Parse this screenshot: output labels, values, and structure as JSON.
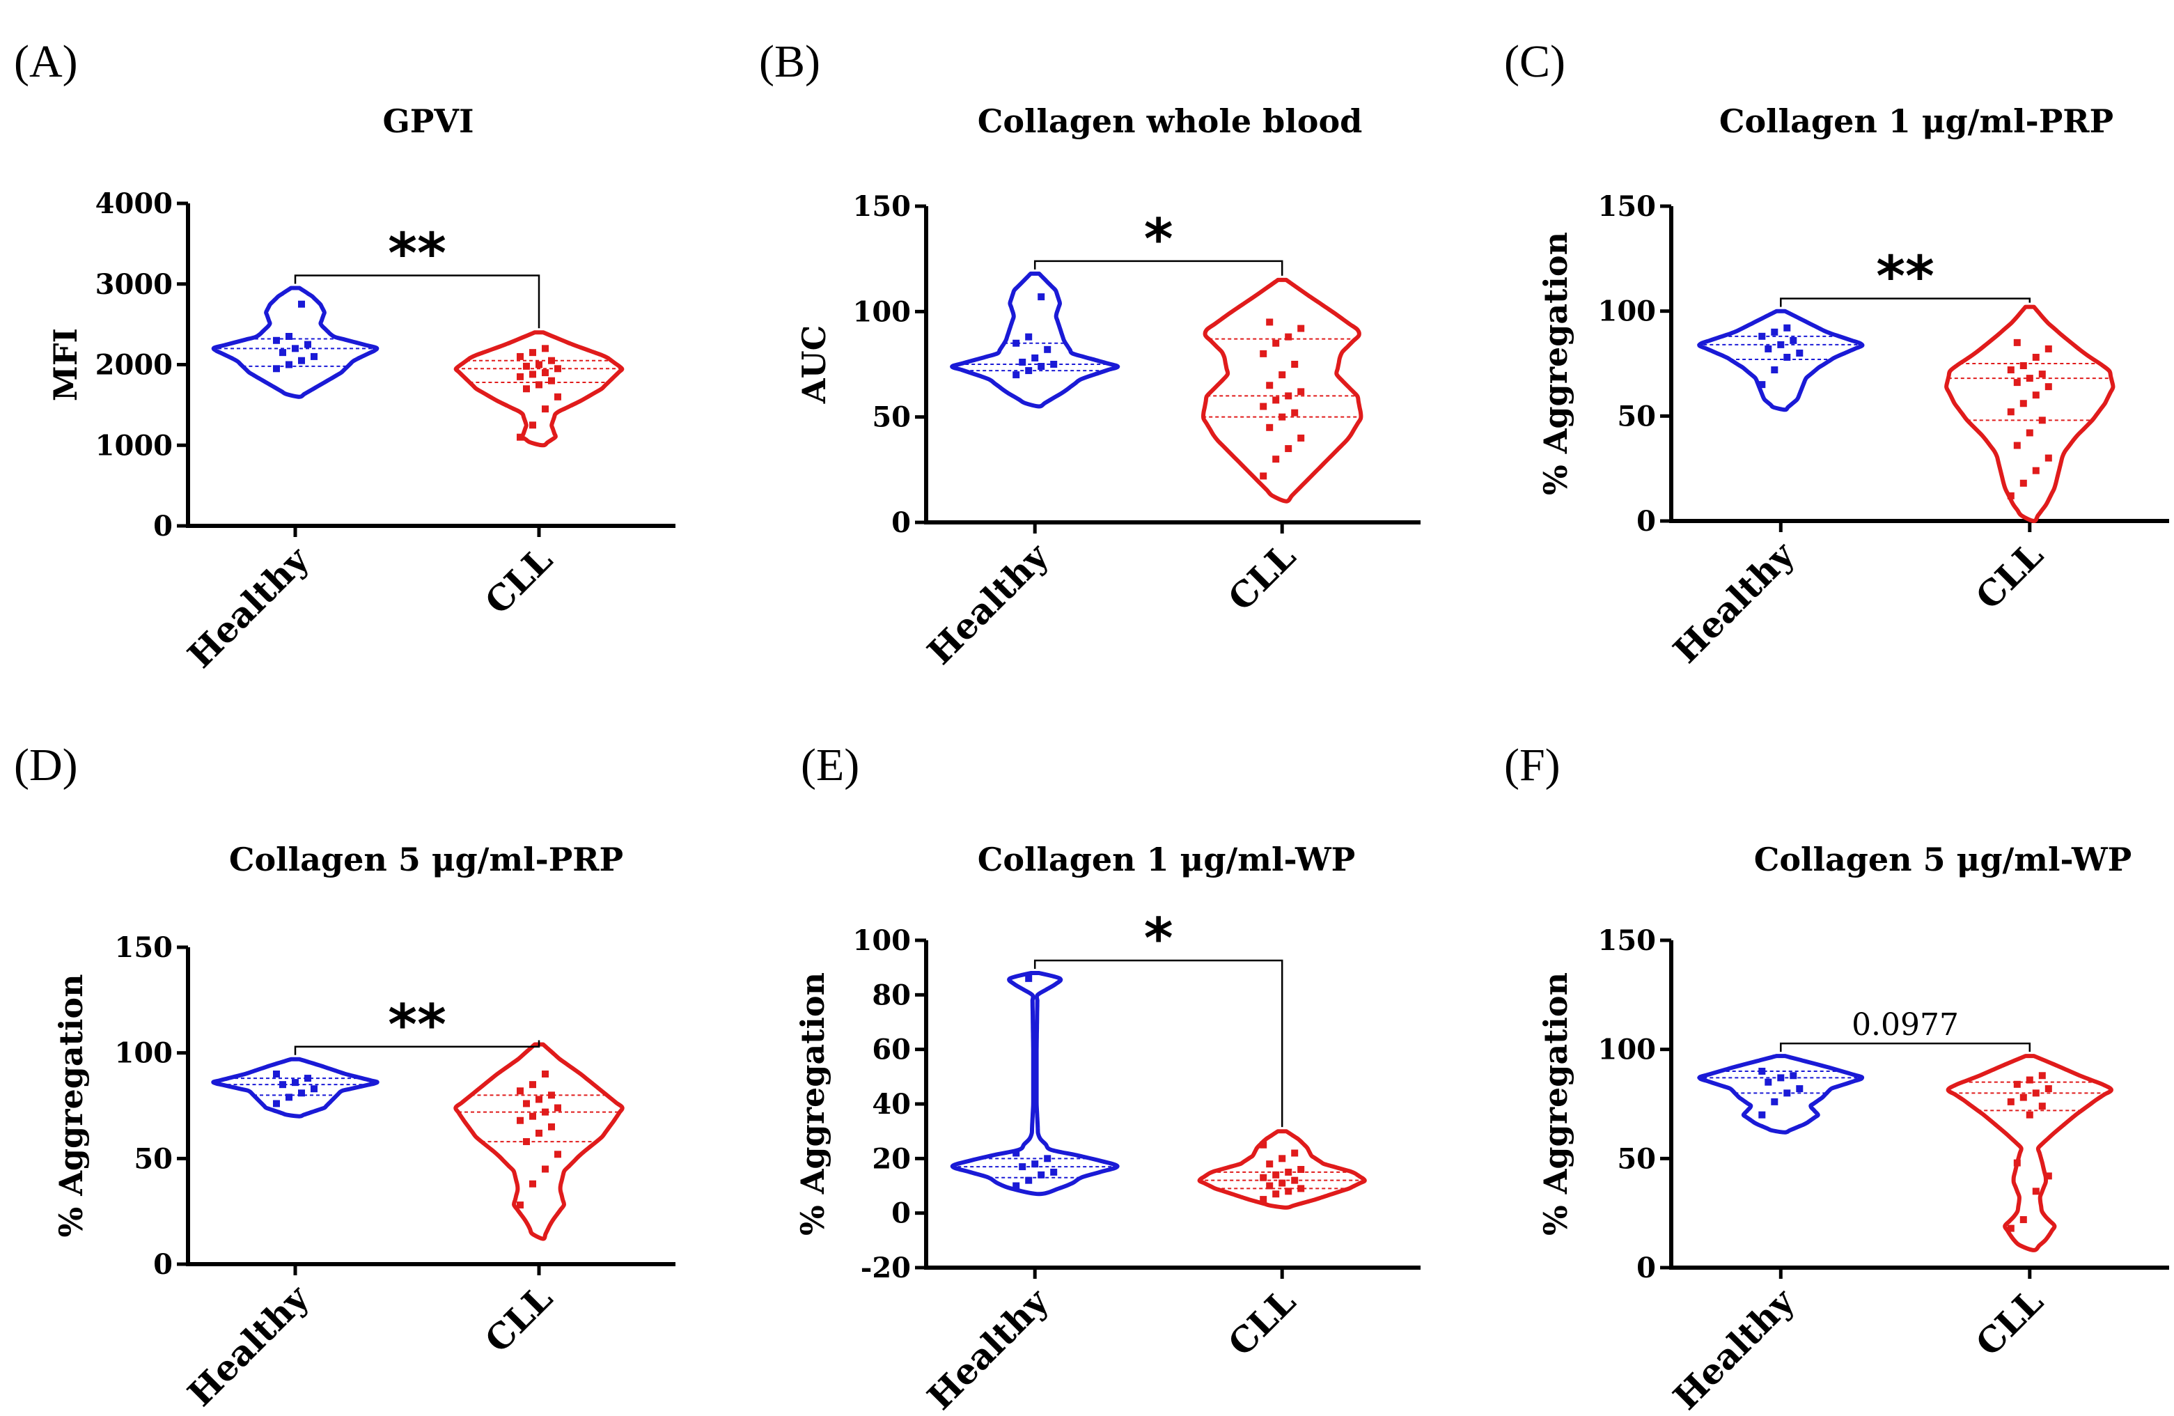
{
  "colors": {
    "healthy": "#1a1ad6",
    "cll": "#e01b1b",
    "axis": "#000000"
  },
  "chart_data": [
    {
      "type": "violin",
      "panel": "(A)",
      "title": "GPVI",
      "ylabel": "MFI",
      "ylim": [
        0,
        4000
      ],
      "yticks": [
        0,
        1000,
        2000,
        3000,
        4000
      ],
      "ytick_labels": [
        "0",
        "1000",
        "2000",
        "3000",
        "4000"
      ],
      "categories": [
        "Healthy",
        "CLL"
      ],
      "significance": "**",
      "series": [
        {
          "name": "Healthy",
          "min": 1600,
          "max": 2950,
          "median": 2200,
          "q1": 1980,
          "q3": 2320,
          "density": [
            [
              1600,
              0.05
            ],
            [
              1750,
              0.3
            ],
            [
              1900,
              0.55
            ],
            [
              2050,
              0.7
            ],
            [
              2200,
              1.0
            ],
            [
              2350,
              0.45
            ],
            [
              2500,
              0.3
            ],
            [
              2650,
              0.35
            ],
            [
              2750,
              0.3
            ],
            [
              2850,
              0.2
            ],
            [
              2950,
              0.05
            ]
          ],
          "points": [
            1950,
            2000,
            2050,
            2100,
            2150,
            2200,
            2250,
            2300,
            2350,
            2750
          ]
        },
        {
          "name": "CLL",
          "min": 1000,
          "max": 2400,
          "median": 1950,
          "q1": 1780,
          "q3": 2050,
          "density": [
            [
              1000,
              0.05
            ],
            [
              1100,
              0.2
            ],
            [
              1250,
              0.15
            ],
            [
              1400,
              0.2
            ],
            [
              1550,
              0.5
            ],
            [
              1700,
              0.75
            ],
            [
              1850,
              0.9
            ],
            [
              1950,
              1.0
            ],
            [
              2100,
              0.8
            ],
            [
              2250,
              0.4
            ],
            [
              2400,
              0.05
            ]
          ],
          "points": [
            1100,
            1250,
            1450,
            1600,
            1700,
            1750,
            1800,
            1850,
            1880,
            1900,
            1950,
            1980,
            2000,
            2050,
            2100,
            2150,
            2200
          ]
        }
      ]
    },
    {
      "type": "violin",
      "panel": "(B)",
      "title": "Collagen whole blood",
      "ylabel": "AUC",
      "ylim": [
        0,
        150
      ],
      "yticks": [
        0,
        50,
        100,
        150
      ],
      "ytick_labels": [
        "0",
        "50",
        "100",
        "150"
      ],
      "categories": [
        "Healthy",
        "CLL"
      ],
      "significance": "*",
      "series": [
        {
          "name": "Healthy",
          "min": 55,
          "max": 118,
          "median": 75,
          "q1": 72,
          "q3": 85,
          "density": [
            [
              55,
              0.05
            ],
            [
              62,
              0.35
            ],
            [
              68,
              0.55
            ],
            [
              74,
              1.0
            ],
            [
              80,
              0.45
            ],
            [
              86,
              0.35
            ],
            [
              92,
              0.3
            ],
            [
              98,
              0.25
            ],
            [
              104,
              0.3
            ],
            [
              110,
              0.25
            ],
            [
              118,
              0.05
            ]
          ],
          "points": [
            70,
            72,
            74,
            75,
            76,
            78,
            82,
            85,
            88,
            107
          ]
        },
        {
          "name": "CLL",
          "min": 10,
          "max": 115,
          "median": 60,
          "q1": 50,
          "q3": 87,
          "density": [
            [
              10,
              0.05
            ],
            [
              20,
              0.3
            ],
            [
              30,
              0.55
            ],
            [
              40,
              0.8
            ],
            [
              50,
              0.95
            ],
            [
              60,
              0.9
            ],
            [
              70,
              0.65
            ],
            [
              80,
              0.7
            ],
            [
              90,
              0.95
            ],
            [
              100,
              0.6
            ],
            [
              108,
              0.3
            ],
            [
              115,
              0.05
            ]
          ],
          "points": [
            22,
            30,
            35,
            40,
            45,
            50,
            52,
            55,
            58,
            60,
            62,
            65,
            70,
            75,
            80,
            85,
            88,
            92,
            95
          ]
        }
      ]
    },
    {
      "type": "violin",
      "panel": "(C)",
      "title": "Collagen 1 μg/ml-PRP",
      "ylabel": "% Aggregation",
      "ylim": [
        0,
        150
      ],
      "yticks": [
        0,
        50,
        100,
        150
      ],
      "ytick_labels": [
        "0",
        "50",
        "100",
        "150"
      ],
      "categories": [
        "Healthy",
        "CLL"
      ],
      "significance": "**",
      "series": [
        {
          "name": "Healthy",
          "min": 53,
          "max": 100,
          "median": 84,
          "q1": 77,
          "q3": 88,
          "density": [
            [
              53,
              0.05
            ],
            [
              58,
              0.2
            ],
            [
              63,
              0.25
            ],
            [
              68,
              0.3
            ],
            [
              73,
              0.45
            ],
            [
              78,
              0.65
            ],
            [
              84,
              1.0
            ],
            [
              90,
              0.55
            ],
            [
              95,
              0.3
            ],
            [
              100,
              0.05
            ]
          ],
          "points": [
            65,
            72,
            78,
            80,
            82,
            84,
            86,
            88,
            90,
            92
          ]
        },
        {
          "name": "CLL",
          "min": 0,
          "max": 102,
          "median": 68,
          "q1": 48,
          "q3": 75,
          "density": [
            [
              0,
              0.05
            ],
            [
              8,
              0.2
            ],
            [
              16,
              0.3
            ],
            [
              24,
              0.35
            ],
            [
              32,
              0.4
            ],
            [
              40,
              0.55
            ],
            [
              48,
              0.75
            ],
            [
              56,
              0.9
            ],
            [
              64,
              1.0
            ],
            [
              72,
              0.95
            ],
            [
              80,
              0.65
            ],
            [
              88,
              0.4
            ],
            [
              95,
              0.2
            ],
            [
              102,
              0.05
            ]
          ],
          "points": [
            12,
            18,
            24,
            30,
            36,
            42,
            48,
            52,
            56,
            60,
            64,
            66,
            68,
            70,
            72,
            74,
            78,
            82,
            85
          ]
        }
      ]
    },
    {
      "type": "violin",
      "panel": "(D)",
      "title": "Collagen 5 μg/ml-PRP",
      "ylabel": "% Aggregation",
      "ylim": [
        0,
        150
      ],
      "yticks": [
        0,
        50,
        100,
        150
      ],
      "ytick_labels": [
        "0",
        "50",
        "100",
        "150"
      ],
      "categories": [
        "Healthy",
        "CLL"
      ],
      "significance": "**",
      "series": [
        {
          "name": "Healthy",
          "min": 70,
          "max": 97,
          "median": 85,
          "q1": 80,
          "q3": 88,
          "density": [
            [
              70,
              0.05
            ],
            [
              74,
              0.35
            ],
            [
              78,
              0.45
            ],
            [
              82,
              0.55
            ],
            [
              86,
              1.0
            ],
            [
              90,
              0.6
            ],
            [
              94,
              0.3
            ],
            [
              97,
              0.05
            ]
          ],
          "points": [
            76,
            79,
            81,
            83,
            85,
            86,
            88,
            90
          ]
        },
        {
          "name": "CLL",
          "min": 12,
          "max": 104,
          "median": 72,
          "q1": 58,
          "q3": 80,
          "density": [
            [
              12,
              0.05
            ],
            [
              20,
              0.15
            ],
            [
              28,
              0.3
            ],
            [
              36,
              0.25
            ],
            [
              44,
              0.3
            ],
            [
              52,
              0.5
            ],
            [
              60,
              0.75
            ],
            [
              68,
              0.9
            ],
            [
              74,
              1.0
            ],
            [
              82,
              0.75
            ],
            [
              90,
              0.5
            ],
            [
              97,
              0.25
            ],
            [
              104,
              0.05
            ]
          ],
          "points": [
            28,
            38,
            45,
            52,
            58,
            62,
            65,
            68,
            70,
            72,
            74,
            76,
            78,
            80,
            82,
            85,
            90
          ]
        }
      ]
    },
    {
      "type": "violin",
      "panel": "(E)",
      "title": "Collagen 1 μg/ml-WP",
      "ylabel": "% Aggregation",
      "ylim": [
        -20,
        100
      ],
      "yticks": [
        -20,
        0,
        20,
        40,
        60,
        80,
        100
      ],
      "ytick_labels": [
        "-20",
        "0",
        "20",
        "40",
        "60",
        "80",
        "100"
      ],
      "categories": [
        "Healthy",
        "CLL"
      ],
      "significance": "*",
      "series": [
        {
          "name": "Healthy",
          "min": 7,
          "max": 88,
          "median": 17,
          "q1": 13,
          "q3": 20,
          "density": [
            [
              7,
              0.05
            ],
            [
              10,
              0.4
            ],
            [
              13,
              0.55
            ],
            [
              17,
              1.0
            ],
            [
              20,
              0.7
            ],
            [
              23,
              0.2
            ],
            [
              28,
              0.04
            ],
            [
              40,
              0.02
            ],
            [
              60,
              0.02
            ],
            [
              80,
              0.03
            ],
            [
              84,
              0.25
            ],
            [
              86,
              0.3
            ],
            [
              88,
              0.05
            ]
          ],
          "points": [
            10,
            12,
            14,
            15,
            17,
            18,
            20,
            22,
            86
          ]
        },
        {
          "name": "CLL",
          "min": 2,
          "max": 30,
          "median": 12,
          "q1": 9,
          "q3": 15,
          "density": [
            [
              2,
              0.05
            ],
            [
              5,
              0.4
            ],
            [
              9,
              0.8
            ],
            [
              12,
              1.0
            ],
            [
              15,
              0.85
            ],
            [
              18,
              0.5
            ],
            [
              21,
              0.35
            ],
            [
              24,
              0.3
            ],
            [
              27,
              0.2
            ],
            [
              30,
              0.05
            ]
          ],
          "points": [
            5,
            7,
            8,
            9,
            10,
            11,
            12,
            13,
            14,
            15,
            16,
            18,
            20,
            22,
            25
          ]
        }
      ]
    },
    {
      "type": "violin",
      "panel": "(F)",
      "title": "Collagen 5 μg/ml-WP",
      "ylabel": "% Aggregation",
      "ylim": [
        0,
        150
      ],
      "yticks": [
        0,
        50,
        100,
        150
      ],
      "ytick_labels": [
        "0",
        "50",
        "100",
        "150"
      ],
      "categories": [
        "Healthy",
        "CLL"
      ],
      "significance": "0.0977",
      "series": [
        {
          "name": "Healthy",
          "min": 62,
          "max": 97,
          "median": 87,
          "q1": 80,
          "q3": 90,
          "density": [
            [
              62,
              0.05
            ],
            [
              66,
              0.3
            ],
            [
              70,
              0.45
            ],
            [
              74,
              0.35
            ],
            [
              78,
              0.5
            ],
            [
              82,
              0.6
            ],
            [
              87,
              1.0
            ],
            [
              92,
              0.55
            ],
            [
              97,
              0.05
            ]
          ],
          "points": [
            70,
            76,
            80,
            82,
            85,
            87,
            88,
            90
          ]
        },
        {
          "name": "CLL",
          "min": 8,
          "max": 97,
          "median": 80,
          "q1": 72,
          "q3": 85,
          "density": [
            [
              8,
              0.05
            ],
            [
              13,
              0.2
            ],
            [
              19,
              0.3
            ],
            [
              25,
              0.15
            ],
            [
              32,
              0.12
            ],
            [
              40,
              0.2
            ],
            [
              48,
              0.15
            ],
            [
              55,
              0.1
            ],
            [
              62,
              0.3
            ],
            [
              70,
              0.55
            ],
            [
              77,
              0.8
            ],
            [
              82,
              1.0
            ],
            [
              88,
              0.6
            ],
            [
              93,
              0.3
            ],
            [
              97,
              0.05
            ]
          ],
          "points": [
            18,
            22,
            35,
            42,
            48,
            70,
            74,
            76,
            78,
            80,
            82,
            84,
            86,
            88
          ]
        }
      ]
    }
  ]
}
